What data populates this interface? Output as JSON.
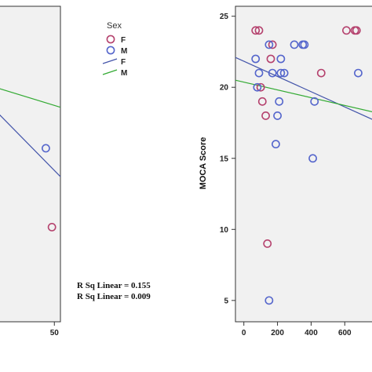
{
  "colors": {
    "female": "#b5426e",
    "male": "#5566cc",
    "fit_female": "#4455aa",
    "fit_male": "#33aa33",
    "plot_bg": "#f1f1f1"
  },
  "legend": {
    "title": "Sex",
    "items": [
      {
        "label": "F",
        "kind": "marker",
        "series": "female"
      },
      {
        "label": "M",
        "kind": "marker",
        "series": "male"
      },
      {
        "label": "F",
        "kind": "line",
        "series": "fit_female"
      },
      {
        "label": "M",
        "kind": "line",
        "series": "fit_male"
      }
    ]
  },
  "annotations": {
    "rsq_female": "R Sq Linear = 0.155",
    "rsq_male": "R Sq Linear = 0.009"
  },
  "chart_data": [
    {
      "type": "scatter",
      "title": "",
      "xlabel": "",
      "ylabel": "",
      "xlim": [
        -42,
        60
      ],
      "ylim": [
        0,
        100
      ],
      "x_ticks": [
        50
      ],
      "x_tick_labels": [
        "50"
      ],
      "y_ticks": [],
      "y_tick_labels": [],
      "grid": false,
      "series": [
        {
          "key": "female",
          "points": [
            [
              46,
              30
            ]
          ]
        },
        {
          "key": "male",
          "points": [
            [
              36,
              55
            ]
          ]
        }
      ],
      "fit_lines": [
        {
          "key": "fit_female",
          "from": [
            -42,
            66
          ],
          "to": [
            60,
            46
          ]
        },
        {
          "key": "fit_male",
          "from": [
            -42,
            74
          ],
          "to": [
            60,
            68
          ]
        }
      ]
    },
    {
      "type": "scatter",
      "title": "",
      "xlabel": "",
      "ylabel": "MOCA Score",
      "xlim": [
        -50,
        790
      ],
      "ylim": [
        3.5,
        25.7
      ],
      "x_ticks": [
        0,
        200,
        400,
        600
      ],
      "x_tick_labels": [
        "0",
        "200",
        "400",
        "600"
      ],
      "y_ticks": [
        5,
        10,
        15,
        20,
        25
      ],
      "y_tick_labels": [
        "5",
        "10",
        "15",
        "20",
        "25"
      ],
      "grid": false,
      "series": [
        {
          "key": "female",
          "points": [
            [
              70,
              24
            ],
            [
              90,
              24
            ],
            [
              130,
              18
            ],
            [
              160,
              22
            ],
            [
              170,
              23
            ],
            [
              100,
              20
            ],
            [
              110,
              19
            ],
            [
              140,
              9
            ],
            [
              460,
              21
            ],
            [
              610,
              24
            ],
            [
              660,
              24
            ],
            [
              670,
              24
            ]
          ]
        },
        {
          "key": "male",
          "points": [
            [
              70,
              22
            ],
            [
              80,
              20
            ],
            [
              90,
              21
            ],
            [
              150,
              23
            ],
            [
              170,
              21
            ],
            [
              200,
              18
            ],
            [
              190,
              16
            ],
            [
              210,
              19
            ],
            [
              220,
              22
            ],
            [
              220,
              21
            ],
            [
              240,
              21
            ],
            [
              300,
              23
            ],
            [
              350,
              23
            ],
            [
              360,
              23
            ],
            [
              410,
              15
            ],
            [
              420,
              19
            ],
            [
              680,
              21
            ],
            [
              150,
              5
            ]
          ]
        }
      ],
      "fit_lines": [
        {
          "key": "fit_female",
          "from": [
            -50,
            22.1
          ],
          "to": [
            790,
            17.6
          ]
        },
        {
          "key": "fit_male",
          "from": [
            -50,
            20.5
          ],
          "to": [
            790,
            18.2
          ]
        }
      ]
    }
  ]
}
